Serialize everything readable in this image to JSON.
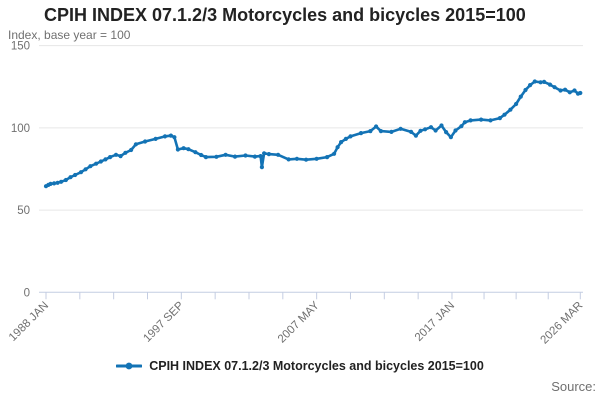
{
  "title": "CPIH INDEX 07.1.2/3 Motorcycles and bicycles 2015=100",
  "subtitle": "Index, base year = 100",
  "source_label": "Source:",
  "legend": {
    "label": "CPIH INDEX 07.1.2/3 Motorcycles and bicycles 2015=100",
    "marker": "line-dot"
  },
  "colors": {
    "line": "#1373b5",
    "grid": "#e6e6e6",
    "axis": "#c4cde2",
    "text_muted": "#707070",
    "text_dark": "#222222"
  },
  "chart_data": {
    "type": "line",
    "title": "CPIH INDEX 07.1.2/3 Motorcycles and bicycles 2015=100",
    "ylabel": "Index, base year = 100",
    "xlabel": "",
    "ylim": [
      0,
      150
    ],
    "yticks": [
      0,
      50,
      100,
      150
    ],
    "grid": "horizontal",
    "legend_position": "bottom",
    "x_domain_years": [
      1988.0,
      2026.1667
    ],
    "xticks": [
      {
        "label": "1988 JAN",
        "year": 1988.0
      },
      {
        "label": "1997 SEP",
        "year": 1997.6667
      },
      {
        "label": "2007 MAY",
        "year": 2007.3333
      },
      {
        "label": "2017 JAN",
        "year": 2017.0
      },
      {
        "label": "2026 MAR",
        "year": 2026.1667
      }
    ],
    "minor_ticks_between_labels": 3,
    "series": [
      {
        "name": "CPIH INDEX 07.1.2/3 Motorcycles and bicycles 2015=100",
        "points": [
          [
            1988.0,
            64.5
          ],
          [
            1988.17,
            65.3
          ],
          [
            1988.33,
            65.9
          ],
          [
            1988.58,
            66.2
          ],
          [
            1988.83,
            66.6
          ],
          [
            1989.08,
            67.2
          ],
          [
            1989.42,
            68.3
          ],
          [
            1989.75,
            70.0
          ],
          [
            1990.08,
            71.3
          ],
          [
            1990.5,
            73.0
          ],
          [
            1990.83,
            74.8
          ],
          [
            1991.17,
            76.7
          ],
          [
            1991.58,
            78.2
          ],
          [
            1991.92,
            79.5
          ],
          [
            1992.25,
            80.8
          ],
          [
            1992.58,
            82.2
          ],
          [
            1993.0,
            83.6
          ],
          [
            1993.33,
            82.8
          ],
          [
            1993.67,
            84.8
          ],
          [
            1994.08,
            86.5
          ],
          [
            1994.42,
            90.0
          ],
          [
            1995.08,
            91.7
          ],
          [
            1995.83,
            93.3
          ],
          [
            1996.5,
            94.8
          ],
          [
            1996.92,
            95.3
          ],
          [
            1997.17,
            94.3
          ],
          [
            1997.42,
            86.8
          ],
          [
            1997.83,
            87.6
          ],
          [
            1998.17,
            87.0
          ],
          [
            1998.67,
            85.2
          ],
          [
            1999.08,
            83.5
          ],
          [
            1999.42,
            82.2
          ],
          [
            2000.17,
            82.4
          ],
          [
            2000.83,
            83.6
          ],
          [
            2001.5,
            82.5
          ],
          [
            2002.25,
            83.2
          ],
          [
            2002.92,
            82.5
          ],
          [
            2003.33,
            82.8
          ],
          [
            2003.42,
            76.1
          ],
          [
            2003.58,
            84.5
          ],
          [
            2003.92,
            84.0
          ],
          [
            2004.58,
            83.6
          ],
          [
            2005.33,
            80.8
          ],
          [
            2005.92,
            81.2
          ],
          [
            2006.58,
            80.6
          ],
          [
            2007.33,
            81.2
          ],
          [
            2008.08,
            82.2
          ],
          [
            2008.58,
            84.2
          ],
          [
            2008.83,
            88.2
          ],
          [
            2009.08,
            91.3
          ],
          [
            2009.42,
            93.3
          ],
          [
            2009.75,
            94.8
          ],
          [
            2010.5,
            96.8
          ],
          [
            2011.17,
            98.0
          ],
          [
            2011.58,
            100.8
          ],
          [
            2011.92,
            98.0
          ],
          [
            2012.67,
            97.5
          ],
          [
            2013.33,
            99.4
          ],
          [
            2014.08,
            97.5
          ],
          [
            2014.42,
            95.3
          ],
          [
            2014.75,
            98.2
          ],
          [
            2015.08,
            99.1
          ],
          [
            2015.5,
            100.4
          ],
          [
            2015.83,
            98.4
          ],
          [
            2016.25,
            101.4
          ],
          [
            2016.58,
            97.4
          ],
          [
            2016.92,
            94.3
          ],
          [
            2017.25,
            98.4
          ],
          [
            2017.67,
            101.0
          ],
          [
            2017.92,
            103.4
          ],
          [
            2018.33,
            104.5
          ],
          [
            2019.08,
            105.0
          ],
          [
            2019.75,
            104.5
          ],
          [
            2020.42,
            105.9
          ],
          [
            2020.75,
            108.0
          ],
          [
            2021.17,
            111.0
          ],
          [
            2021.58,
            114.5
          ],
          [
            2021.92,
            119.0
          ],
          [
            2022.25,
            123.0
          ],
          [
            2022.58,
            126.0
          ],
          [
            2022.92,
            128.2
          ],
          [
            2023.33,
            127.7
          ],
          [
            2023.58,
            127.9
          ],
          [
            2024.0,
            126.3
          ],
          [
            2024.33,
            124.7
          ],
          [
            2024.75,
            122.7
          ],
          [
            2025.08,
            123.2
          ],
          [
            2025.42,
            121.6
          ],
          [
            2025.75,
            122.7
          ],
          [
            2026.0,
            120.8
          ],
          [
            2026.17,
            121.2
          ]
        ]
      }
    ]
  }
}
